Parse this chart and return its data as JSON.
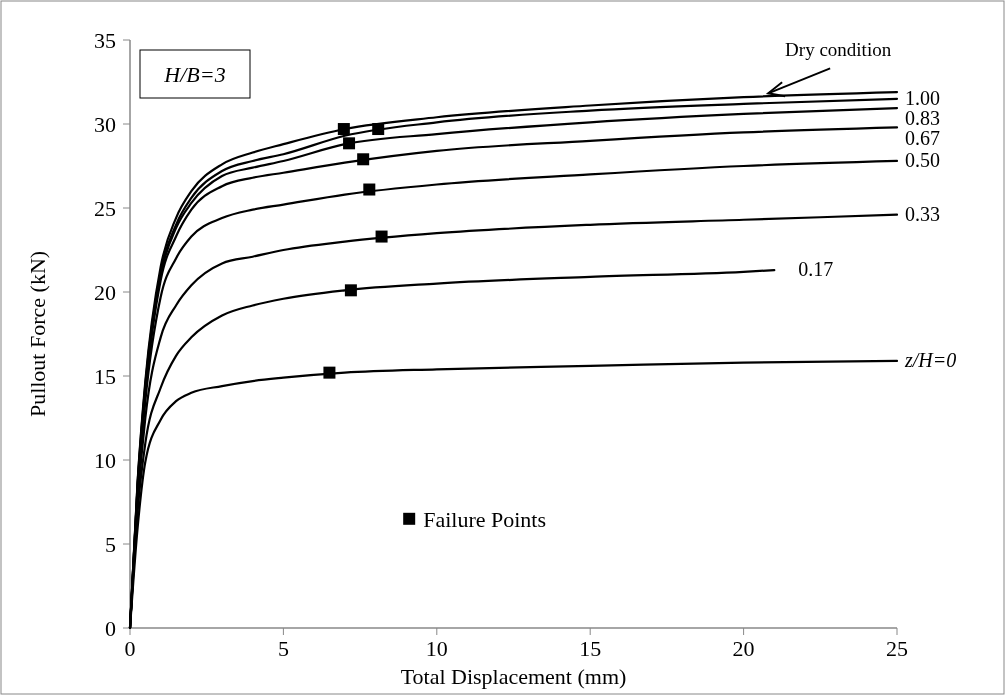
{
  "chart_data": {
    "type": "line",
    "xlabel": "Total Displacement (mm)",
    "ylabel": "Pullout Force (kN)",
    "annotations": [
      "H/B=3"
    ],
    "xlim": [
      0,
      25
    ],
    "xticks": [
      0,
      5,
      10,
      15,
      20,
      25
    ],
    "ylim": [
      0,
      35
    ],
    "yticks": [
      0,
      5,
      10,
      15,
      20,
      25,
      30,
      35
    ],
    "grid": false,
    "legend": "bottom",
    "marker": "none",
    "line_style": "solid",
    "series": [
      {
        "name": "Dry condition",
        "color": "#000000",
        "x": [
          0,
          0.25,
          0.5,
          1,
          1.5,
          2,
          3,
          4,
          5,
          7,
          10,
          15,
          20,
          25
        ],
        "values": [
          0,
          8.8,
          14.7,
          21.5,
          24.4,
          26,
          27.6,
          28.3,
          28.8,
          29.7,
          30.4,
          31.1,
          31.6,
          31.9
        ]
      },
      {
        "name": "1.00",
        "color": "#000000",
        "x": [
          0,
          0.25,
          0.5,
          1,
          1.5,
          2,
          3,
          4,
          5,
          7,
          10,
          15,
          20,
          25
        ],
        "values": [
          0,
          8.7,
          14.5,
          21.2,
          24,
          25.6,
          27.2,
          27.8,
          28.2,
          29.3,
          30.1,
          30.8,
          31.2,
          31.5
        ]
      },
      {
        "name": "0.83",
        "color": "#000000",
        "x": [
          0,
          0.25,
          0.5,
          1,
          1.5,
          2,
          3,
          4,
          5,
          7,
          10,
          15,
          20,
          25
        ],
        "values": [
          0,
          8.5,
          14.3,
          21,
          23.8,
          25.3,
          26.9,
          27.4,
          27.8,
          28.8,
          29.4,
          30.1,
          30.6,
          30.95
        ]
      },
      {
        "name": "0.67",
        "color": "#000000",
        "x": [
          0,
          0.25,
          0.5,
          1,
          1.5,
          2,
          3,
          4,
          5,
          7,
          10,
          15,
          20,
          25
        ],
        "values": [
          0,
          8.5,
          14,
          20.7,
          23.3,
          24.9,
          26.3,
          26.8,
          27.1,
          27.7,
          28.4,
          29,
          29.5,
          29.8
        ]
      },
      {
        "name": "0.50",
        "color": "#000000",
        "x": [
          0,
          0.25,
          0.5,
          1,
          1.5,
          2,
          3,
          4,
          5,
          7,
          10,
          15,
          20,
          25
        ],
        "values": [
          0,
          8,
          13.5,
          19.7,
          22,
          23.3,
          24.4,
          24.9,
          25.2,
          25.8,
          26.4,
          27,
          27.5,
          27.8
        ]
      },
      {
        "name": "0.33",
        "color": "#000000",
        "x": [
          0,
          0.25,
          0.5,
          1,
          1.5,
          2,
          3,
          4,
          5,
          7,
          10,
          15,
          20,
          25
        ],
        "values": [
          0,
          7.5,
          12.5,
          17.3,
          19.2,
          20.4,
          21.7,
          22.1,
          22.5,
          23,
          23.5,
          24,
          24.3,
          24.6
        ]
      },
      {
        "name": "0.17",
        "color": "#000000",
        "x": [
          0,
          0.25,
          0.5,
          1,
          1.5,
          2,
          3,
          4,
          5,
          7,
          10,
          15,
          20,
          21
        ],
        "values": [
          0,
          7,
          11,
          14.3,
          16.2,
          17.3,
          18.6,
          19.2,
          19.6,
          20.1,
          20.5,
          20.9,
          21.2,
          21.3
        ]
      },
      {
        "name": "z/H=0",
        "color": "#000000",
        "x": [
          0,
          0.25,
          0.5,
          1,
          1.5,
          2,
          3,
          4,
          5,
          7,
          10,
          15,
          20,
          25
        ],
        "values": [
          0,
          6,
          9.9,
          12.4,
          13.5,
          14,
          14.4,
          14.7,
          14.9,
          15.2,
          15.4,
          15.6,
          15.8,
          15.9
        ]
      },
      {
        "name": "Failure Points",
        "type": "scatter",
        "marker": "square",
        "color": "#000000",
        "x": [
          6.97,
          8.09,
          7.14,
          7.6,
          7.8,
          8.2,
          7.2,
          6.5
        ],
        "values": [
          29.7,
          29.7,
          28.85,
          27.9,
          26.1,
          23.3,
          20.1,
          15.2
        ]
      }
    ]
  }
}
